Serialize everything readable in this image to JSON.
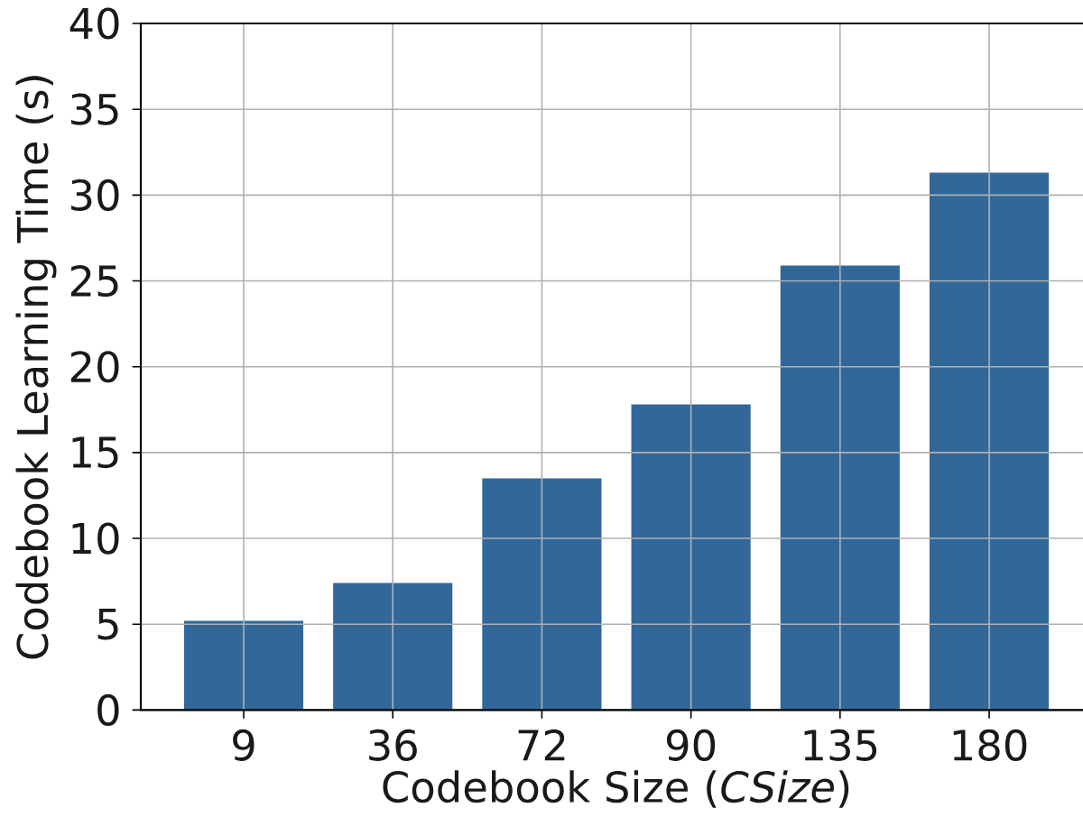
{
  "chart_data": {
    "type": "bar",
    "xlabel": "Codebook Size (*CSize*)",
    "ylabel": "Codebook Learning Time (s)",
    "categories": [
      "9",
      "36",
      "72",
      "90",
      "135",
      "180"
    ],
    "values": [
      5.2,
      7.4,
      13.5,
      17.8,
      25.9,
      31.3
    ],
    "color": "#316799",
    "ylim": [
      0,
      40
    ],
    "yticks": [
      0,
      5,
      10,
      15,
      20,
      25,
      30,
      35,
      40
    ],
    "grid": true
  }
}
